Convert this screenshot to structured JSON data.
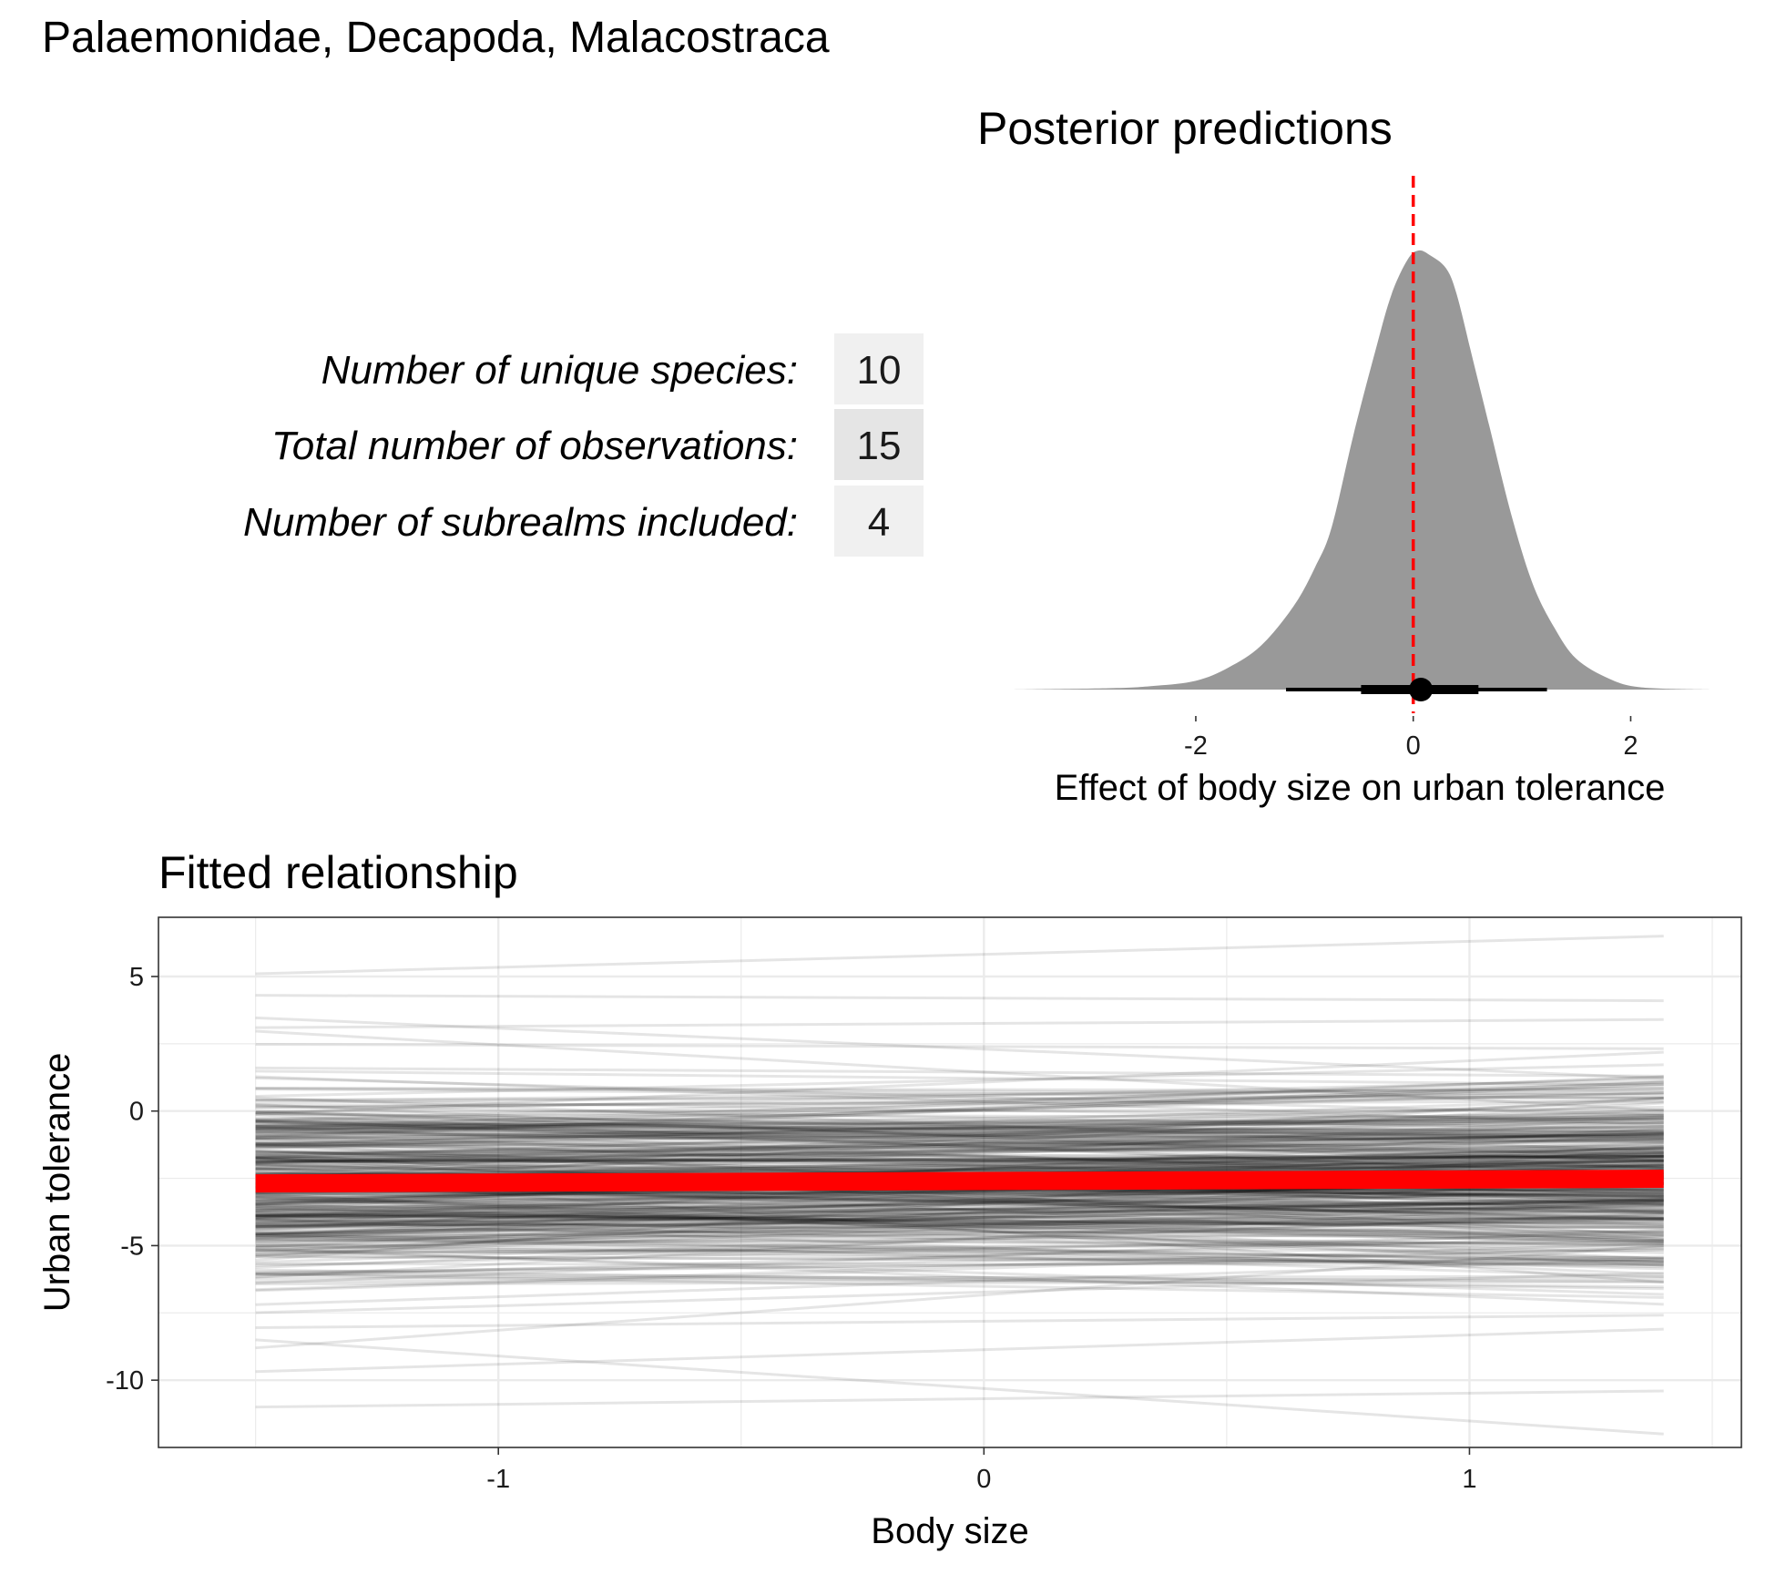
{
  "figure_title": "Palaemonidae, Decapoda, Malacostraca",
  "summary_table": {
    "rows": [
      {
        "label": "Number of unique species:",
        "value": "10"
      },
      {
        "label": "Total number of observations:",
        "value": "15"
      },
      {
        "label": "Number of subrealms included:",
        "value": "4"
      }
    ]
  },
  "chart_data": [
    {
      "type": "area",
      "title": "Posterior predictions",
      "xlabel": "Effect of body size on urban tolerance",
      "ylabel": "",
      "xlim": [
        -3.7,
        2.75
      ],
      "x_ticks": [
        "-2",
        "0",
        "2"
      ],
      "x_tick_values": [
        -2,
        0,
        2
      ],
      "grid": false,
      "density_points": [
        [
          -3.7,
          0.0
        ],
        [
          -2.8,
          0.003
        ],
        [
          -2.4,
          0.008
        ],
        [
          -2.0,
          0.02
        ],
        [
          -1.7,
          0.05
        ],
        [
          -1.4,
          0.1
        ],
        [
          -1.1,
          0.19
        ],
        [
          -0.9,
          0.28
        ],
        [
          -0.75,
          0.37
        ],
        [
          -0.55,
          0.58
        ],
        [
          -0.35,
          0.77
        ],
        [
          -0.2,
          0.9
        ],
        [
          -0.05,
          0.98
        ],
        [
          0.05,
          1.0
        ],
        [
          0.15,
          0.99
        ],
        [
          0.3,
          0.96
        ],
        [
          0.4,
          0.9
        ],
        [
          0.55,
          0.75
        ],
        [
          0.7,
          0.6
        ],
        [
          0.9,
          0.4
        ],
        [
          1.1,
          0.24
        ],
        [
          1.3,
          0.14
        ],
        [
          1.5,
          0.07
        ],
        [
          1.8,
          0.025
        ],
        [
          2.1,
          0.005
        ],
        [
          2.75,
          0.0
        ]
      ],
      "point_estimate": 0.07,
      "interval_thick": [
        -0.48,
        0.6
      ],
      "interval_thin": [
        -1.17,
        1.23
      ],
      "reference_line_x": 0,
      "colors": {
        "density_fill": "#999999",
        "reference_line": "#ff0000",
        "interval": "#000000"
      }
    },
    {
      "type": "line",
      "title": "Fitted relationship",
      "xlabel": "Body size",
      "ylabel": "Urban tolerance",
      "xlim": [
        -1.7,
        1.56
      ],
      "ylim": [
        -12.5,
        7.2
      ],
      "x_ticks": [
        "-1",
        "0",
        "1"
      ],
      "x_tick_values": [
        -1,
        0,
        1
      ],
      "y_ticks": [
        "5",
        "0",
        "-5",
        "-10"
      ],
      "y_tick_values": [
        5,
        0,
        -5,
        -10
      ],
      "x_range": [
        -1.5,
        1.4
      ],
      "grid": true,
      "mean_line": {
        "intercept": -2.6,
        "slope": 0.06
      },
      "posterior_draws": {
        "count": 400,
        "intercept_mean": -2.6,
        "intercept_sd": 1.8,
        "slope_mean": 0.06,
        "slope_sd": 0.42
      },
      "outlier_draws": [
        {
          "y_start": 5.1,
          "y_end": 6.5
        },
        {
          "y_start": 4.3,
          "y_end": 4.1
        },
        {
          "y_start": -8.5,
          "y_end": -12.0
        },
        {
          "y_start": -11.0,
          "y_end": -10.4
        },
        {
          "y_start": -8.8,
          "y_end": -5.0
        },
        {
          "y_start": 3.1,
          "y_end": 3.4
        }
      ],
      "colors": {
        "draws": "#000000",
        "mean_line": "#ff0000",
        "panel_border": "#333333",
        "grid": "#ebebeb"
      }
    }
  ]
}
